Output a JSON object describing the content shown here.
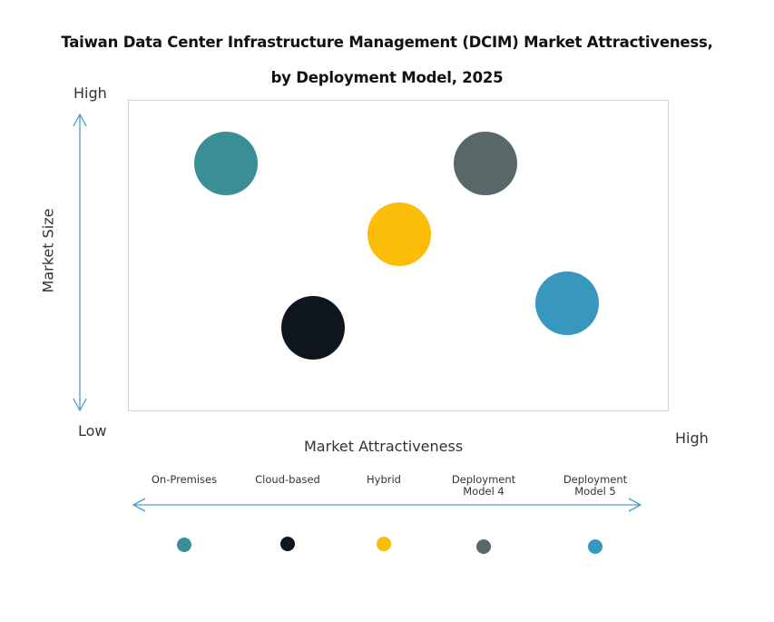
{
  "title": {
    "line1": "Taiwan Data Center Infrastructure Management (DCIM) Market Attractiveness,",
    "line2": "by Deployment Model, 2025"
  },
  "y_axis": {
    "label": "Market Size",
    "high": "High",
    "low": "Low"
  },
  "x_axis": {
    "label": "Market Attractiveness",
    "high": "High"
  },
  "colors": {
    "axis_arrow": "#4a9fc0",
    "plot_border": "#d4d4d4"
  },
  "legend": [
    {
      "label": "On-Premises",
      "color": "#3a8f96"
    },
    {
      "label": "Cloud-based",
      "color": "#10161d"
    },
    {
      "label": "Hybrid",
      "color": "#fbbd08"
    },
    {
      "label": "Deployment Model 4",
      "color": "#586768"
    },
    {
      "label": "Deployment Model 5",
      "color": "#3797bf"
    }
  ],
  "chart_data": {
    "type": "scatter",
    "title": "Taiwan Data Center Infrastructure Management (DCIM) Market Attractiveness, by Deployment Model, 2025",
    "xlabel": "Market Attractiveness",
    "ylabel": "Market Size",
    "x_range_labels": [
      "Low",
      "High"
    ],
    "y_range_labels": [
      "Low",
      "High"
    ],
    "xlim": [
      0,
      100
    ],
    "ylim": [
      0,
      100
    ],
    "grid": false,
    "legend_position": "bottom",
    "series": [
      {
        "name": "On-Premises",
        "x": 18,
        "y": 80,
        "color": "#3a8f96"
      },
      {
        "name": "Cloud-based",
        "x": 34,
        "y": 27,
        "color": "#10161d"
      },
      {
        "name": "Hybrid",
        "x": 50,
        "y": 57,
        "color": "#fbbd08"
      },
      {
        "name": "Deployment Model 4",
        "x": 66,
        "y": 80,
        "color": "#586768"
      },
      {
        "name": "Deployment Model 5",
        "x": 81,
        "y": 35,
        "color": "#3797bf"
      }
    ]
  }
}
